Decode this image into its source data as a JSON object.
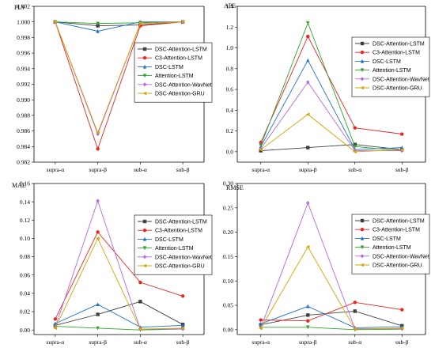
{
  "series_styles": [
    {
      "color": "#404040",
      "marker": "square"
    },
    {
      "color": "#e8261f",
      "marker": "circle"
    },
    {
      "color": "#1f6fd1",
      "marker": "triangle"
    },
    {
      "color": "#2ca62c",
      "marker": "down-triangle"
    },
    {
      "color": "#b267e6",
      "marker": "diamond"
    },
    {
      "color": "#d9a300",
      "marker": "left-triangle"
    }
  ],
  "chart_data": [
    {
      "type": "line",
      "title": "PLV",
      "xlabel": "",
      "ylabel": "",
      "categories": [
        "supra-α",
        "supra-β",
        "sub-α",
        "sub-β"
      ],
      "ylim": [
        0.982,
        1.002
      ],
      "yticks": [
        "0.982",
        "0.984",
        "0.986",
        "0.988",
        "0.990",
        "0.992",
        "0.994",
        "0.996",
        "0.998",
        "1.000",
        "1.002"
      ],
      "grid": false,
      "legend_position": "right",
      "series": [
        {
          "name": "DSC-Attention-LSTM",
          "values": [
            1.0,
            0.9995,
            0.9996,
            1.0
          ]
        },
        {
          "name": "C3-Attention-LSTM",
          "values": [
            1.0,
            0.9837,
            0.9995,
            1.0
          ]
        },
        {
          "name": "DSC-LSTM",
          "values": [
            1.0,
            0.9988,
            1.0,
            1.0
          ]
        },
        {
          "name": "Attention-LSTM",
          "values": [
            1.0,
            0.9998,
            0.9999,
            1.0
          ]
        },
        {
          "name": "DSC-Attention-WavNet",
          "values": [
            1.0,
            0.9856,
            0.9998,
            1.0
          ]
        },
        {
          "name": "DSC-Attention-GRU",
          "values": [
            1.0,
            0.9858,
            0.9998,
            1.0
          ]
        }
      ]
    },
    {
      "type": "line",
      "title": "APE",
      "xlabel": "",
      "ylabel": "",
      "categories": [
        "supra-α",
        "supra-β",
        "sub-α",
        "sub-β"
      ],
      "ylim": [
        -0.1,
        1.4
      ],
      "yticks": [
        "0.0",
        "0.2",
        "0.4",
        "0.6",
        "0.8",
        "1.0",
        "1.2",
        "1.4"
      ],
      "grid": false,
      "legend_position": "right",
      "series": [
        {
          "name": "DSC-Attention-LSTM",
          "values": [
            0.01,
            0.04,
            0.07,
            0.02
          ]
        },
        {
          "name": "C3-Attention-LSTM",
          "values": [
            0.09,
            1.11,
            0.23,
            0.17
          ]
        },
        {
          "name": "DSC-LSTM",
          "values": [
            0.05,
            0.88,
            0.02,
            0.04
          ]
        },
        {
          "name": "Attention-LSTM",
          "values": [
            0.06,
            1.24,
            0.05,
            0.01
          ]
        },
        {
          "name": "DSC-Attention-WavNet",
          "values": [
            0.03,
            0.67,
            0.01,
            0.01
          ]
        },
        {
          "name": "DSC-Attention-GRU",
          "values": [
            0.02,
            0.36,
            0.0,
            0.02
          ]
        }
      ]
    },
    {
      "type": "line",
      "title": "MAE",
      "xlabel": "",
      "ylabel": "",
      "categories": [
        "supra-α",
        "supra-β",
        "sub-α",
        "sub-β"
      ],
      "ylim": [
        -0.005,
        0.16
      ],
      "yticks": [
        "0.00",
        "0.02",
        "0.04",
        "0.06",
        "0.08",
        "0.10",
        "0.12",
        "0.14",
        "0.16"
      ],
      "grid": false,
      "legend_position": "right",
      "series": [
        {
          "name": "DSC-Attention-LSTM",
          "values": [
            0.005,
            0.017,
            0.031,
            0.006
          ]
        },
        {
          "name": "C3-Attention-LSTM",
          "values": [
            0.012,
            0.107,
            0.052,
            0.037
          ]
        },
        {
          "name": "DSC-LSTM",
          "values": [
            0.007,
            0.028,
            0.003,
            0.005
          ]
        },
        {
          "name": "Attention-LSTM",
          "values": [
            0.004,
            0.002,
            0.0,
            0.001
          ]
        },
        {
          "name": "DSC-Attention-WavNet",
          "values": [
            0.003,
            0.141,
            0.001,
            0.001
          ]
        },
        {
          "name": "DSC-Attention-GRU",
          "values": [
            0.002,
            0.1,
            0.001,
            0.002
          ]
        }
      ]
    },
    {
      "type": "line",
      "title": "RMSE",
      "xlabel": "",
      "ylabel": "",
      "categories": [
        "supra-α",
        "supra-β",
        "sub-α",
        "sub-β"
      ],
      "ylim": [
        -0.01,
        0.3
      ],
      "yticks": [
        "0.00",
        "0.05",
        "0.10",
        "0.15",
        "0.20",
        "0.25",
        "0.30"
      ],
      "grid": false,
      "legend_position": "right",
      "series": [
        {
          "name": "DSC-Attention-LSTM",
          "values": [
            0.01,
            0.03,
            0.038,
            0.008
          ]
        },
        {
          "name": "C3-Attention-LSTM",
          "values": [
            0.02,
            0.018,
            0.056,
            0.041
          ]
        },
        {
          "name": "DSC-LSTM",
          "values": [
            0.012,
            0.048,
            0.004,
            0.006
          ]
        },
        {
          "name": "Attention-LSTM",
          "values": [
            0.005,
            0.005,
            0.0,
            0.001
          ]
        },
        {
          "name": "DSC-Attention-WavNet",
          "values": [
            0.004,
            0.26,
            0.002,
            0.002
          ]
        },
        {
          "name": "DSC-Attention-GRU",
          "values": [
            0.003,
            0.17,
            0.001,
            0.003
          ]
        }
      ]
    }
  ]
}
